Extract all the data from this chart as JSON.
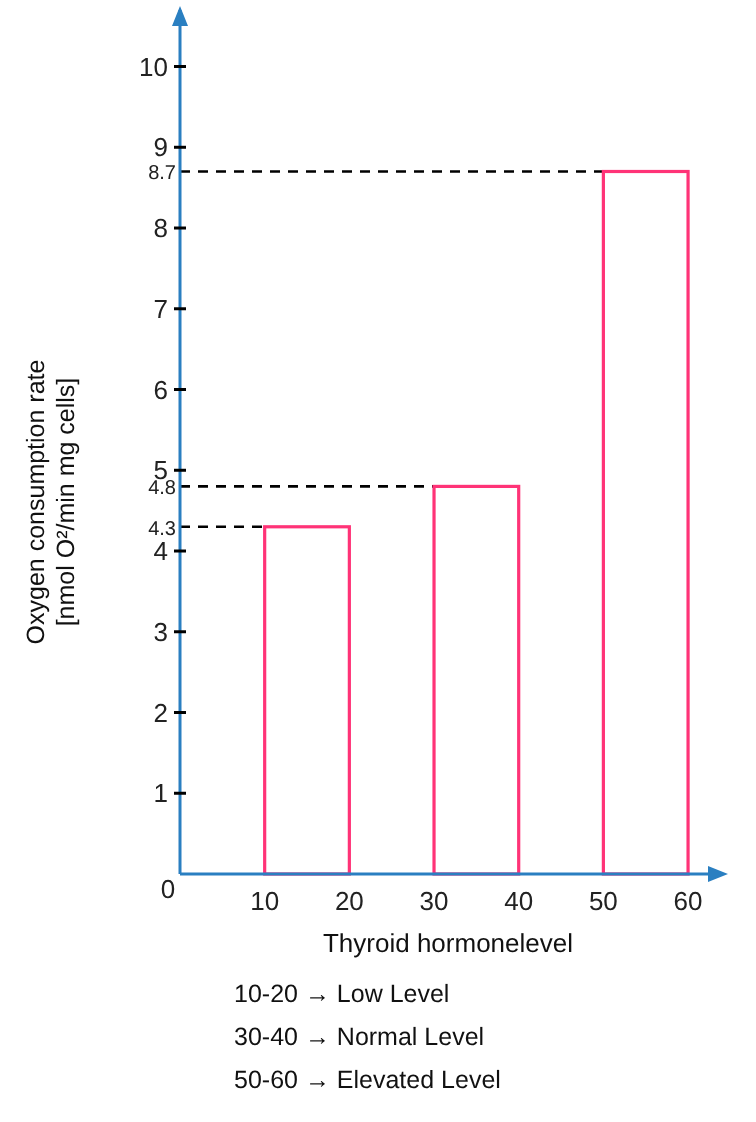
{
  "chart_data": {
    "type": "histogram",
    "bins": [
      10,
      20,
      30,
      40,
      50,
      60
    ],
    "values": [
      4.3,
      0,
      4.8,
      0,
      8.7
    ],
    "color": "#ff3377",
    "xlabel": "Thyroid hormonelevel",
    "ylabel": "Oxygen consumption rate\n[nmol O²/min mg cells]",
    "xlim": [
      0,
      63.3
    ],
    "ylim": [
      0,
      10.7
    ],
    "xticks": [
      10,
      20,
      30,
      40,
      50,
      60
    ],
    "yticks": [
      {
        "value": 0,
        "label": "0"
      },
      1,
      2,
      3,
      4,
      5,
      6,
      7,
      8,
      9,
      10
    ],
    "ref_lines": [
      {
        "axis": "y",
        "value": 4.3,
        "label": "4.3",
        "line_style": "dashed",
        "color": "#000000"
      },
      {
        "axis": "y",
        "value": 4.8,
        "label": "4.8",
        "line_style": "dashed",
        "color": "#000000"
      },
      {
        "axis": "y",
        "value": 8.7,
        "label": "8.7",
        "line_style": "dashed",
        "color": "#000000"
      }
    ],
    "annotations": [
      "10-20 → Low Level",
      "30-40 → Normal Level",
      "50-60 → Elevated Level"
    ],
    "grid": false
  }
}
